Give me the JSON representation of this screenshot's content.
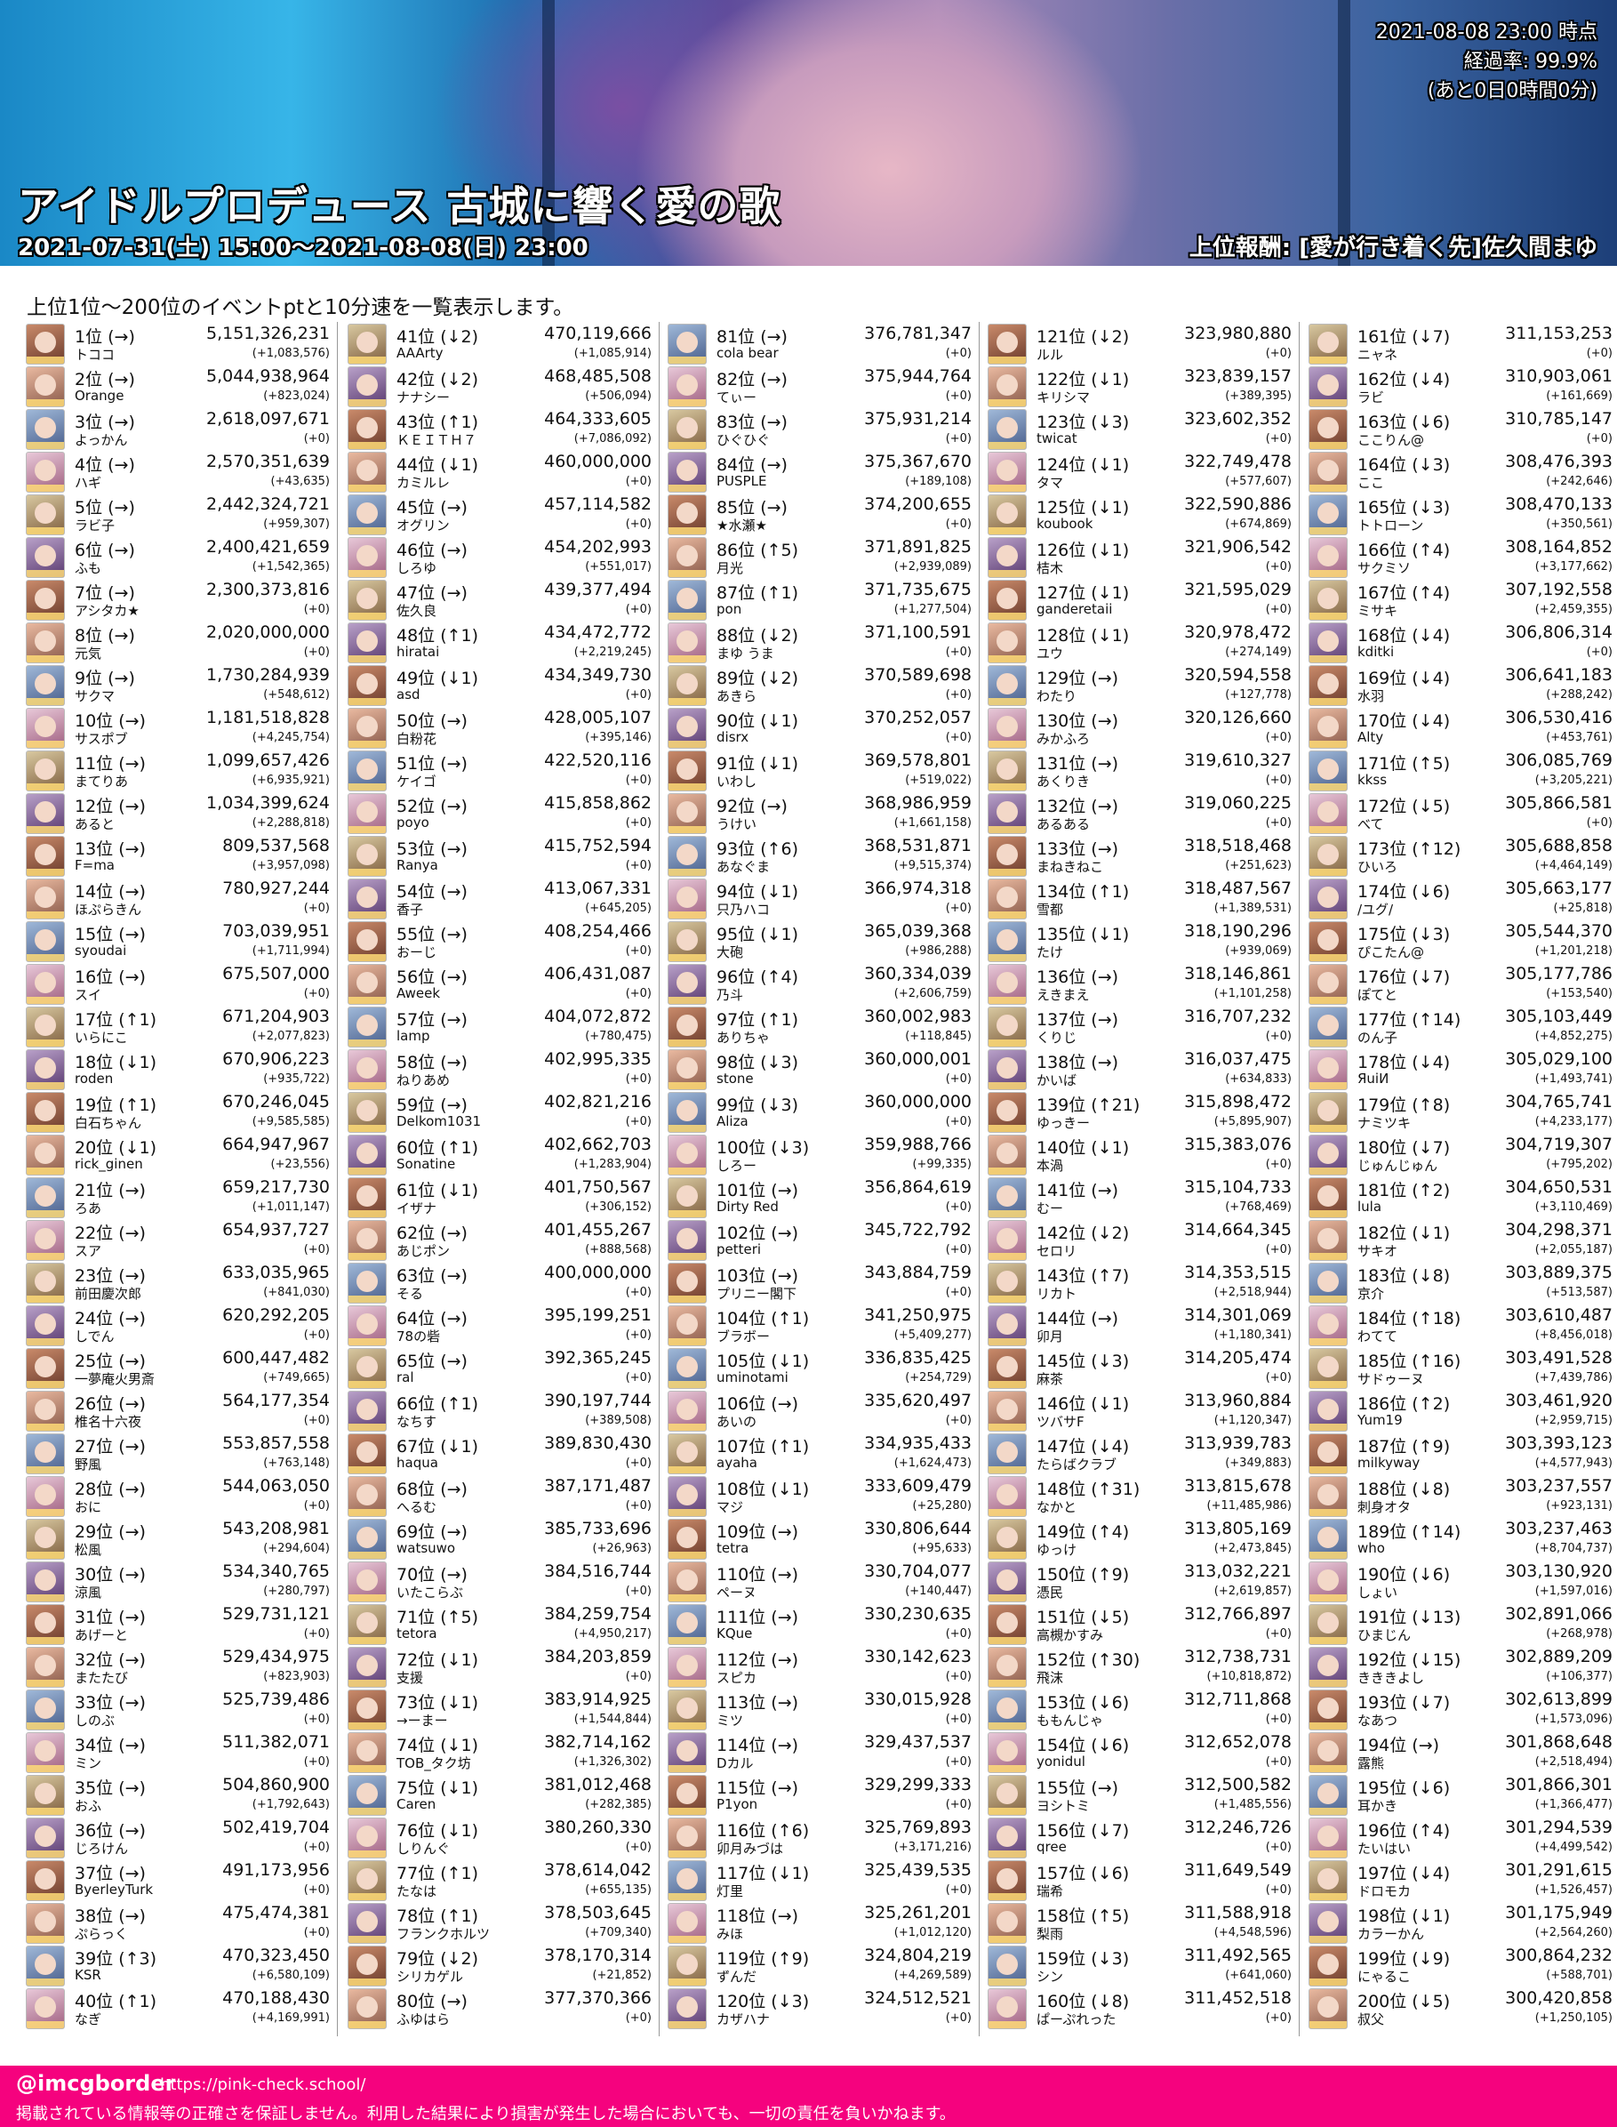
{
  "header": {
    "title": "アイドルプロデュース 古城に響く愛の歌",
    "period": "2021-07-31(土) 15:00～2021-08-08(日) 23:00",
    "reward": "上位報酬: [愛が行き着く先]佐久間まゆ",
    "timestamp": "2021-08-08 23:00 時点",
    "progress": "経過率: 99.9%",
    "remaining": "(あと0日0時間0分)"
  },
  "lead": "上位1位～200位のイベントptと10分速を一覧表示します。",
  "rankings": [
    [
      "1位 (→)",
      "トココ",
      "5,151,326,231",
      "(+1,083,576)"
    ],
    [
      "2位 (→)",
      "Orange",
      "5,044,938,964",
      "(+823,024)"
    ],
    [
      "3位 (→)",
      "よっかん",
      "2,618,097,671",
      "(+0)"
    ],
    [
      "4位 (→)",
      "ハギ",
      "2,570,351,639",
      "(+43,635)"
    ],
    [
      "5位 (→)",
      "ラビ子",
      "2,442,324,721",
      "(+959,307)"
    ],
    [
      "6位 (→)",
      "ふも",
      "2,400,421,659",
      "(+1,542,365)"
    ],
    [
      "7位 (→)",
      "アシタカ★",
      "2,300,373,816",
      "(+0)"
    ],
    [
      "8位 (→)",
      "元気",
      "2,020,000,000",
      "(+0)"
    ],
    [
      "9位 (→)",
      "サクマ",
      "1,730,284,939",
      "(+548,612)"
    ],
    [
      "10位 (→)",
      "サスポブ",
      "1,181,518,828",
      "(+4,245,754)"
    ],
    [
      "11位 (→)",
      "まてりあ",
      "1,099,657,426",
      "(+6,935,921)"
    ],
    [
      "12位 (→)",
      "あると",
      "1,034,399,624",
      "(+2,288,818)"
    ],
    [
      "13位 (→)",
      "F=ma",
      "809,537,568",
      "(+3,957,098)"
    ],
    [
      "14位 (→)",
      "ほぷらきん",
      "780,927,244",
      "(+0)"
    ],
    [
      "15位 (→)",
      "syoudai",
      "703,039,951",
      "(+1,711,994)"
    ],
    [
      "16位 (→)",
      "スイ",
      "675,507,000",
      "(+0)"
    ],
    [
      "17位 (↑1)",
      "いらにこ",
      "671,204,903",
      "(+2,077,823)"
    ],
    [
      "18位 (↓1)",
      "roden",
      "670,906,223",
      "(+935,722)"
    ],
    [
      "19位 (↑1)",
      "白石ちゃん",
      "670,246,045",
      "(+9,585,585)"
    ],
    [
      "20位 (↓1)",
      "rick_ginen",
      "664,947,967",
      "(+23,556)"
    ],
    [
      "21位 (→)",
      "ろあ",
      "659,217,730",
      "(+1,011,147)"
    ],
    [
      "22位 (→)",
      "スア",
      "654,937,727",
      "(+0)"
    ],
    [
      "23位 (→)",
      "前田慶次郎",
      "633,035,965",
      "(+841,030)"
    ],
    [
      "24位 (→)",
      "しでん",
      "620,292,205",
      "(+0)"
    ],
    [
      "25位 (→)",
      "一夢庵火男斎",
      "600,447,482",
      "(+749,665)"
    ],
    [
      "26位 (→)",
      "椎名十六夜",
      "564,177,354",
      "(+0)"
    ],
    [
      "27位 (→)",
      "野風",
      "553,857,558",
      "(+763,148)"
    ],
    [
      "28位 (→)",
      "おに",
      "544,063,050",
      "(+0)"
    ],
    [
      "29位 (→)",
      "松風",
      "543,208,981",
      "(+294,604)"
    ],
    [
      "30位 (→)",
      "涼風",
      "534,340,765",
      "(+280,797)"
    ],
    [
      "31位 (→)",
      "あげーと",
      "529,731,121",
      "(+0)"
    ],
    [
      "32位 (→)",
      "またたび",
      "529,434,975",
      "(+823,903)"
    ],
    [
      "33位 (→)",
      "しのぶ",
      "525,739,486",
      "(+0)"
    ],
    [
      "34位 (→)",
      "ミン",
      "511,382,071",
      "(+0)"
    ],
    [
      "35位 (→)",
      "おふ",
      "504,860,900",
      "(+1,792,643)"
    ],
    [
      "36位 (→)",
      "じろけん",
      "502,419,704",
      "(+0)"
    ],
    [
      "37位 (→)",
      "ByerleyTurk",
      "491,173,956",
      "(+0)"
    ],
    [
      "38位 (→)",
      "ぷらっく",
      "475,474,381",
      "(+0)"
    ],
    [
      "39位 (↑3)",
      "KSR",
      "470,323,450",
      "(+6,580,109)"
    ],
    [
      "40位 (↑1)",
      "なぎ",
      "470,188,430",
      "(+4,169,991)"
    ],
    [
      "41位 (↓2)",
      "AAArty",
      "470,119,666",
      "(+1,085,914)"
    ],
    [
      "42位 (↓2)",
      "ナナシー",
      "468,485,508",
      "(+506,094)"
    ],
    [
      "43位 (↑1)",
      "ＫＥＩＴＨ７",
      "464,333,605",
      "(+7,086,092)"
    ],
    [
      "44位 (↓1)",
      "カミルレ",
      "460,000,000",
      "(+0)"
    ],
    [
      "45位 (→)",
      "オグリン",
      "457,114,582",
      "(+0)"
    ],
    [
      "46位 (→)",
      "しろゆ",
      "454,202,993",
      "(+551,017)"
    ],
    [
      "47位 (→)",
      "佐久良",
      "439,377,494",
      "(+0)"
    ],
    [
      "48位 (↑1)",
      "hiratai",
      "434,472,772",
      "(+2,219,245)"
    ],
    [
      "49位 (↓1)",
      "asd",
      "434,349,730",
      "(+0)"
    ],
    [
      "50位 (→)",
      "白粉花",
      "428,005,107",
      "(+395,146)"
    ],
    [
      "51位 (→)",
      "ケイゴ",
      "422,520,116",
      "(+0)"
    ],
    [
      "52位 (→)",
      "poyo",
      "415,858,862",
      "(+0)"
    ],
    [
      "53位 (→)",
      "Ranya",
      "415,752,594",
      "(+0)"
    ],
    [
      "54位 (→)",
      "香子",
      "413,067,331",
      "(+645,205)"
    ],
    [
      "55位 (→)",
      "おーじ",
      "408,254,466",
      "(+0)"
    ],
    [
      "56位 (→)",
      "Aweek",
      "406,431,087",
      "(+0)"
    ],
    [
      "57位 (→)",
      "lamp",
      "404,072,872",
      "(+780,475)"
    ],
    [
      "58位 (→)",
      "ねりあめ",
      "402,995,335",
      "(+0)"
    ],
    [
      "59位 (→)",
      "Delkom1031",
      "402,821,216",
      "(+0)"
    ],
    [
      "60位 (↑1)",
      "Sonatine",
      "402,662,703",
      "(+1,283,904)"
    ],
    [
      "61位 (↓1)",
      "イザナ",
      "401,750,567",
      "(+306,152)"
    ],
    [
      "62位 (→)",
      "あじポン",
      "401,455,267",
      "(+888,568)"
    ],
    [
      "63位 (→)",
      "そる",
      "400,000,000",
      "(+0)"
    ],
    [
      "64位 (→)",
      "78の砦",
      "395,199,251",
      "(+0)"
    ],
    [
      "65位 (→)",
      "ral",
      "392,365,245",
      "(+0)"
    ],
    [
      "66位 (↑1)",
      "なちす",
      "390,197,744",
      "(+389,508)"
    ],
    [
      "67位 (↓1)",
      "haqua",
      "389,830,430",
      "(+0)"
    ],
    [
      "68位 (→)",
      "へるむ",
      "387,171,487",
      "(+0)"
    ],
    [
      "69位 (→)",
      "watsuwo",
      "385,733,696",
      "(+26,963)"
    ],
    [
      "70位 (→)",
      "いたこらぶ",
      "384,516,744",
      "(+0)"
    ],
    [
      "71位 (↑5)",
      "tetora",
      "384,259,754",
      "(+4,950,217)"
    ],
    [
      "72位 (↓1)",
      "支援",
      "384,203,859",
      "(+0)"
    ],
    [
      "73位 (↓1)",
      "→ーまー",
      "383,914,925",
      "(+1,544,844)"
    ],
    [
      "74位 (↓1)",
      "TOB_タク坊",
      "382,714,162",
      "(+1,326,302)"
    ],
    [
      "75位 (↓1)",
      "Caren",
      "381,012,468",
      "(+282,385)"
    ],
    [
      "76位 (↓1)",
      "しりんぐ",
      "380,260,330",
      "(+0)"
    ],
    [
      "77位 (↑1)",
      "たなは",
      "378,614,042",
      "(+655,135)"
    ],
    [
      "78位 (↑1)",
      "フランクホルツ",
      "378,503,645",
      "(+709,340)"
    ],
    [
      "79位 (↓2)",
      "シリカゲル",
      "378,170,314",
      "(+21,852)"
    ],
    [
      "80位 (→)",
      "ふゆはら",
      "377,370,366",
      "(+0)"
    ],
    [
      "81位 (→)",
      "cola bear",
      "376,781,347",
      "(+0)"
    ],
    [
      "82位 (→)",
      "てぃー",
      "375,944,764",
      "(+0)"
    ],
    [
      "83位 (→)",
      "ひぐひぐ",
      "375,931,214",
      "(+0)"
    ],
    [
      "84位 (→)",
      "PUSPLE",
      "375,367,670",
      "(+189,108)"
    ],
    [
      "85位 (→)",
      "★水瀬★",
      "374,200,655",
      "(+0)"
    ],
    [
      "86位 (↑5)",
      "月光",
      "371,891,825",
      "(+2,939,089)"
    ],
    [
      "87位 (↑1)",
      "pon",
      "371,735,675",
      "(+1,277,504)"
    ],
    [
      "88位 (↓2)",
      "まゆ うま",
      "371,100,591",
      "(+0)"
    ],
    [
      "89位 (↓2)",
      "あきら",
      "370,589,698",
      "(+0)"
    ],
    [
      "90位 (↓1)",
      "disrx",
      "370,252,057",
      "(+0)"
    ],
    [
      "91位 (↓1)",
      "いわし",
      "369,578,801",
      "(+519,022)"
    ],
    [
      "92位 (→)",
      "うけい",
      "368,986,959",
      "(+1,661,158)"
    ],
    [
      "93位 (↑6)",
      "あなぐま",
      "368,531,871",
      "(+9,515,374)"
    ],
    [
      "94位 (↓1)",
      "只乃ハコ",
      "366,974,318",
      "(+0)"
    ],
    [
      "95位 (↓1)",
      "大砲",
      "365,039,368",
      "(+986,288)"
    ],
    [
      "96位 (↑4)",
      "乃斗",
      "360,334,039",
      "(+2,606,759)"
    ],
    [
      "97位 (↑1)",
      "ありちゃ",
      "360,002,983",
      "(+118,845)"
    ],
    [
      "98位 (↓3)",
      "stone",
      "360,000,001",
      "(+0)"
    ],
    [
      "99位 (↓3)",
      "Aliza",
      "360,000,000",
      "(+0)"
    ],
    [
      "100位 (↓3)",
      "しろー",
      "359,988,766",
      "(+99,335)"
    ],
    [
      "101位 (→)",
      "Dirty Red",
      "356,864,619",
      "(+0)"
    ],
    [
      "102位 (→)",
      "petteri",
      "345,722,792",
      "(+0)"
    ],
    [
      "103位 (→)",
      "プリニー閣下",
      "343,884,759",
      "(+0)"
    ],
    [
      "104位 (↑1)",
      "ブラボー",
      "341,250,975",
      "(+5,409,277)"
    ],
    [
      "105位 (↓1)",
      "uminotami",
      "336,835,425",
      "(+254,729)"
    ],
    [
      "106位 (→)",
      "あいの",
      "335,620,497",
      "(+0)"
    ],
    [
      "107位 (↑1)",
      "ayaha",
      "334,935,433",
      "(+1,624,473)"
    ],
    [
      "108位 (↓1)",
      "マジ",
      "333,609,479",
      "(+25,280)"
    ],
    [
      "109位 (→)",
      "tetra",
      "330,806,644",
      "(+95,633)"
    ],
    [
      "110位 (→)",
      "ペーヌ",
      "330,704,077",
      "(+140,447)"
    ],
    [
      "111位 (→)",
      "KQue",
      "330,230,635",
      "(+0)"
    ],
    [
      "112位 (→)",
      "スピカ",
      "330,142,623",
      "(+0)"
    ],
    [
      "113位 (→)",
      "ミツ",
      "330,015,928",
      "(+0)"
    ],
    [
      "114位 (→)",
      "Dカル",
      "329,437,537",
      "(+0)"
    ],
    [
      "115位 (→)",
      "P1yon",
      "329,299,333",
      "(+0)"
    ],
    [
      "116位 (↑6)",
      "卯月みづは",
      "325,769,893",
      "(+3,171,216)"
    ],
    [
      "117位 (↓1)",
      "灯里",
      "325,439,535",
      "(+0)"
    ],
    [
      "118位 (→)",
      "みほ",
      "325,261,201",
      "(+1,012,120)"
    ],
    [
      "119位 (↑9)",
      "ずんだ",
      "324,804,219",
      "(+4,269,589)"
    ],
    [
      "120位 (↓3)",
      "カザハナ",
      "324,512,521",
      "(+0)"
    ],
    [
      "121位 (↓2)",
      "ルル",
      "323,980,880",
      "(+0)"
    ],
    [
      "122位 (↓1)",
      "キリシマ",
      "323,839,157",
      "(+389,395)"
    ],
    [
      "123位 (↓3)",
      "twicat",
      "323,602,352",
      "(+0)"
    ],
    [
      "124位 (↓1)",
      "タマ",
      "322,749,478",
      "(+577,607)"
    ],
    [
      "125位 (↓1)",
      "koubook",
      "322,590,886",
      "(+674,869)"
    ],
    [
      "126位 (↓1)",
      "桔木",
      "321,906,542",
      "(+0)"
    ],
    [
      "127位 (↓1)",
      "ganderetaii",
      "321,595,029",
      "(+0)"
    ],
    [
      "128位 (↓1)",
      "ユウ",
      "320,978,472",
      "(+274,149)"
    ],
    [
      "129位 (→)",
      "わたり",
      "320,594,558",
      "(+127,778)"
    ],
    [
      "130位 (→)",
      "みかふろ",
      "320,126,660",
      "(+0)"
    ],
    [
      "131位 (→)",
      "あくりき",
      "319,610,327",
      "(+0)"
    ],
    [
      "132位 (→)",
      "あるある",
      "319,060,225",
      "(+0)"
    ],
    [
      "133位 (→)",
      "まねきねこ",
      "318,518,468",
      "(+251,623)"
    ],
    [
      "134位 (↑1)",
      "雪都",
      "318,487,567",
      "(+1,389,531)"
    ],
    [
      "135位 (↓1)",
      "たけ",
      "318,190,296",
      "(+939,069)"
    ],
    [
      "136位 (→)",
      "えきまえ",
      "318,146,861",
      "(+1,101,258)"
    ],
    [
      "137位 (→)",
      "くりじ",
      "316,707,232",
      "(+0)"
    ],
    [
      "138位 (→)",
      "かいば",
      "316,037,475",
      "(+634,833)"
    ],
    [
      "139位 (↑21)",
      "ゆっきー",
      "315,898,472",
      "(+5,895,907)"
    ],
    [
      "140位 (↓1)",
      "本渦",
      "315,383,076",
      "(+0)"
    ],
    [
      "141位 (→)",
      "むー",
      "315,104,733",
      "(+768,469)"
    ],
    [
      "142位 (↓2)",
      "セロリ",
      "314,664,345",
      "(+0)"
    ],
    [
      "143位 (↑7)",
      "リカト",
      "314,353,515",
      "(+2,518,944)"
    ],
    [
      "144位 (→)",
      "卯月",
      "314,301,069",
      "(+1,180,341)"
    ],
    [
      "145位 (↓3)",
      "麻茶",
      "314,205,474",
      "(+0)"
    ],
    [
      "146位 (↓1)",
      "ツバサF",
      "313,960,884",
      "(+1,120,347)"
    ],
    [
      "147位 (↓4)",
      "たらばクラブ",
      "313,939,783",
      "(+349,883)"
    ],
    [
      "148位 (↑31)",
      "なかと",
      "313,815,678",
      "(+11,485,986)"
    ],
    [
      "149位 (↑4)",
      "ゆっけ",
      "313,805,169",
      "(+2,473,845)"
    ],
    [
      "150位 (↑9)",
      "憑民",
      "313,032,221",
      "(+2,619,857)"
    ],
    [
      "151位 (↓5)",
      "高槻かすみ",
      "312,766,897",
      "(+0)"
    ],
    [
      "152位 (↑30)",
      "飛沫",
      "312,738,731",
      "(+10,818,872)"
    ],
    [
      "153位 (↓6)",
      "ももんじゃ",
      "312,711,868",
      "(+0)"
    ],
    [
      "154位 (↓6)",
      "yonidul",
      "312,652,078",
      "(+0)"
    ],
    [
      "155位 (→)",
      "ヨシトミ",
      "312,500,582",
      "(+1,485,556)"
    ],
    [
      "156位 (↓7)",
      "qree",
      "312,246,726",
      "(+0)"
    ],
    [
      "157位 (↓6)",
      "瑞希",
      "311,649,549",
      "(+0)"
    ],
    [
      "158位 (↑5)",
      "梨雨",
      "311,588,918",
      "(+4,548,596)"
    ],
    [
      "159位 (↓3)",
      "シン",
      "311,492,565",
      "(+641,060)"
    ],
    [
      "160位 (↓8)",
      "ぱーぷれった",
      "311,452,518",
      "(+0)"
    ],
    [
      "161位 (↓7)",
      "ニャネ",
      "311,153,253",
      "(+0)"
    ],
    [
      "162位 (↓4)",
      "ラビ",
      "310,903,061",
      "(+161,669)"
    ],
    [
      "163位 (↓6)",
      "ここりん@",
      "310,785,147",
      "(+0)"
    ],
    [
      "164位 (↓3)",
      "ここ",
      "308,476,393",
      "(+242,646)"
    ],
    [
      "165位 (↓3)",
      "トトローン",
      "308,470,133",
      "(+350,561)"
    ],
    [
      "166位 (↑4)",
      "サクミソ",
      "308,164,852",
      "(+3,177,662)"
    ],
    [
      "167位 (↑4)",
      "ミサキ",
      "307,192,558",
      "(+2,459,355)"
    ],
    [
      "168位 (↓4)",
      "kditki",
      "306,806,314",
      "(+0)"
    ],
    [
      "169位 (↓4)",
      "水羽",
      "306,641,183",
      "(+288,242)"
    ],
    [
      "170位 (↓4)",
      "Alty",
      "306,530,416",
      "(+453,761)"
    ],
    [
      "171位 (↑5)",
      "kkss",
      "306,085,769",
      "(+3,205,221)"
    ],
    [
      "172位 (↓5)",
      "べて",
      "305,866,581",
      "(+0)"
    ],
    [
      "173位 (↑12)",
      "ひいろ",
      "305,688,858",
      "(+4,464,149)"
    ],
    [
      "174位 (↓6)",
      "/ユグ/",
      "305,663,177",
      "(+25,818)"
    ],
    [
      "175位 (↓3)",
      "ぴこたん@",
      "305,544,370",
      "(+1,201,218)"
    ],
    [
      "176位 (↓7)",
      "ぽてと",
      "305,177,786",
      "(+153,540)"
    ],
    [
      "177位 (↑14)",
      "のん子",
      "305,103,449",
      "(+4,852,275)"
    ],
    [
      "178位 (↓4)",
      "ЯuiИ",
      "305,029,100",
      "(+1,493,741)"
    ],
    [
      "179位 (↑8)",
      "ナミツキ",
      "304,765,741",
      "(+4,233,177)"
    ],
    [
      "180位 (↓7)",
      "じゅんじゅん",
      "304,719,307",
      "(+795,202)"
    ],
    [
      "181位 (↑2)",
      "lula",
      "304,650,531",
      "(+3,110,469)"
    ],
    [
      "182位 (↓1)",
      "サキオ",
      "304,298,371",
      "(+2,055,187)"
    ],
    [
      "183位 (↓8)",
      "京介",
      "303,889,375",
      "(+513,587)"
    ],
    [
      "184位 (↑18)",
      "わてて",
      "303,610,487",
      "(+8,456,018)"
    ],
    [
      "185位 (↑16)",
      "サドゥーヌ",
      "303,491,528",
      "(+7,439,786)"
    ],
    [
      "186位 (↑2)",
      "Yum19",
      "303,461,920",
      "(+2,959,715)"
    ],
    [
      "187位 (↑9)",
      "milkyway",
      "303,393,123",
      "(+4,577,943)"
    ],
    [
      "188位 (↓8)",
      "刺身オタ",
      "303,237,557",
      "(+923,131)"
    ],
    [
      "189位 (↑14)",
      "who",
      "303,237,463",
      "(+8,704,737)"
    ],
    [
      "190位 (↓6)",
      "しょい",
      "303,130,920",
      "(+1,597,016)"
    ],
    [
      "191位 (↓13)",
      "ひまじん",
      "302,891,066",
      "(+268,978)"
    ],
    [
      "192位 (↓15)",
      "きききよし",
      "302,889,209",
      "(+106,377)"
    ],
    [
      "193位 (↓7)",
      "なあつ",
      "302,613,899",
      "(+1,573,096)"
    ],
    [
      "194位 (→)",
      "露熊",
      "301,868,648",
      "(+2,518,494)"
    ],
    [
      "195位 (↓6)",
      "耳かき",
      "301,866,301",
      "(+1,366,477)"
    ],
    [
      "196位 (↑4)",
      "たいはい",
      "301,294,539",
      "(+4,499,542)"
    ],
    [
      "197位 (↓4)",
      "ドロモカ",
      "301,291,615",
      "(+1,526,457)"
    ],
    [
      "198位 (↓1)",
      "カラーかん",
      "301,175,949",
      "(+2,564,260)"
    ],
    [
      "199位 (↓9)",
      "にゃるこ",
      "300,864,232",
      "(+588,701)"
    ],
    [
      "200位 (↓5)",
      "叔父",
      "300,420,858",
      "(+1,250,105)"
    ]
  ],
  "footer": {
    "handle": "@imcgborder",
    "url": "https://pink-check.school/",
    "disclaimer": "掲載されている情報等の正確さを保証しません。利用した結果により損害が発生した場合においても、一切の責任を負いかねます。",
    "color": "#f5027e"
  }
}
